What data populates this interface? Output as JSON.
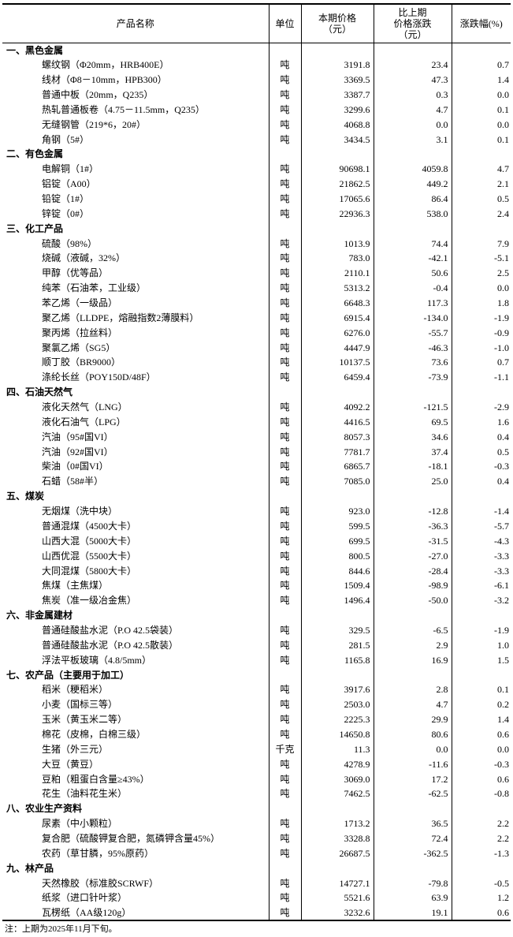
{
  "header": {
    "name": "产品名称",
    "unit": "单位",
    "price_l1": "本期价格",
    "price_l2": "（元）",
    "change_l1": "比上期",
    "change_l2": "价格涨跌",
    "change_l3": "（元）",
    "pct": "涨跌幅(%)"
  },
  "sections": [
    {
      "title": "一、黑色金属",
      "items": [
        {
          "name": "螺纹钢（Φ20mm，HRB400E）",
          "unit": "吨",
          "price": "3191.8",
          "change": "23.4",
          "pct": "0.7"
        },
        {
          "name": "线材（Φ8－10mm，HPB300）",
          "unit": "吨",
          "price": "3369.5",
          "change": "47.3",
          "pct": "1.4"
        },
        {
          "name": "普通中板（20mm，Q235）",
          "unit": "吨",
          "price": "3387.7",
          "change": "0.3",
          "pct": "0.0"
        },
        {
          "name": "热轧普通板卷（4.75－11.5mm，Q235）",
          "unit": "吨",
          "price": "3299.6",
          "change": "4.7",
          "pct": "0.1"
        },
        {
          "name": "无缝钢管（219*6，20#）",
          "unit": "吨",
          "price": "4068.8",
          "change": "0.0",
          "pct": "0.0"
        },
        {
          "name": "角钢（5#）",
          "unit": "吨",
          "price": "3434.5",
          "change": "3.1",
          "pct": "0.1"
        }
      ]
    },
    {
      "title": "二、有色金属",
      "items": [
        {
          "name": "电解铜（1#）",
          "unit": "吨",
          "price": "90698.1",
          "change": "4059.8",
          "pct": "4.7"
        },
        {
          "name": "铝锭（A00）",
          "unit": "吨",
          "price": "21862.5",
          "change": "449.2",
          "pct": "2.1"
        },
        {
          "name": "铅锭（1#）",
          "unit": "吨",
          "price": "17065.6",
          "change": "86.4",
          "pct": "0.5"
        },
        {
          "name": "锌锭（0#）",
          "unit": "吨",
          "price": "22936.3",
          "change": "538.0",
          "pct": "2.4"
        }
      ]
    },
    {
      "title": "三、化工产品",
      "items": [
        {
          "name": "硫酸（98%）",
          "unit": "吨",
          "price": "1013.9",
          "change": "74.4",
          "pct": "7.9"
        },
        {
          "name": "烧碱（液碱，32%）",
          "unit": "吨",
          "price": "783.0",
          "change": "-42.1",
          "pct": "-5.1"
        },
        {
          "name": "甲醇（优等品）",
          "unit": "吨",
          "price": "2110.1",
          "change": "50.6",
          "pct": "2.5"
        },
        {
          "name": "纯苯（石油苯，工业级）",
          "unit": "吨",
          "price": "5313.2",
          "change": "-0.4",
          "pct": "0.0"
        },
        {
          "name": "苯乙烯（一级品）",
          "unit": "吨",
          "price": "6648.3",
          "change": "117.3",
          "pct": "1.8"
        },
        {
          "name": "聚乙烯（LLDPE，熔融指数2薄膜料）",
          "unit": "吨",
          "price": "6915.4",
          "change": "-134.0",
          "pct": "-1.9"
        },
        {
          "name": "聚丙烯（拉丝料）",
          "unit": "吨",
          "price": "6276.0",
          "change": "-55.7",
          "pct": "-0.9"
        },
        {
          "name": "聚氯乙烯（SG5）",
          "unit": "吨",
          "price": "4447.9",
          "change": "-46.3",
          "pct": "-1.0"
        },
        {
          "name": "顺丁胶（BR9000）",
          "unit": "吨",
          "price": "10137.5",
          "change": "73.6",
          "pct": "0.7"
        },
        {
          "name": "涤纶长丝（POY150D/48F）",
          "unit": "吨",
          "price": "6459.4",
          "change": "-73.9",
          "pct": "-1.1"
        }
      ]
    },
    {
      "title": "四、石油天然气",
      "items": [
        {
          "name": "液化天然气（LNG）",
          "unit": "吨",
          "price": "4092.2",
          "change": "-121.5",
          "pct": "-2.9"
        },
        {
          "name": "液化石油气（LPG）",
          "unit": "吨",
          "price": "4416.5",
          "change": "69.5",
          "pct": "1.6"
        },
        {
          "name": "汽油（95#国VI）",
          "unit": "吨",
          "price": "8057.3",
          "change": "34.6",
          "pct": "0.4"
        },
        {
          "name": "汽油（92#国VI）",
          "unit": "吨",
          "price": "7781.7",
          "change": "37.4",
          "pct": "0.5"
        },
        {
          "name": "柴油（0#国VI）",
          "unit": "吨",
          "price": "6865.7",
          "change": "-18.1",
          "pct": "-0.3"
        },
        {
          "name": "石蜡（58#半）",
          "unit": "吨",
          "price": "7085.0",
          "change": "25.0",
          "pct": "0.4"
        }
      ]
    },
    {
      "title": "五、煤炭",
      "items": [
        {
          "name": "无烟煤（洗中块）",
          "unit": "吨",
          "price": "923.0",
          "change": "-12.8",
          "pct": "-1.4"
        },
        {
          "name": "普通混煤（4500大卡）",
          "unit": "吨",
          "price": "599.5",
          "change": "-36.3",
          "pct": "-5.7"
        },
        {
          "name": "山西大混（5000大卡）",
          "unit": "吨",
          "price": "699.5",
          "change": "-31.5",
          "pct": "-4.3"
        },
        {
          "name": "山西优混（5500大卡）",
          "unit": "吨",
          "price": "800.5",
          "change": "-27.0",
          "pct": "-3.3"
        },
        {
          "name": "大同混煤（5800大卡）",
          "unit": "吨",
          "price": "844.6",
          "change": "-28.4",
          "pct": "-3.3"
        },
        {
          "name": "焦煤（主焦煤）",
          "unit": "吨",
          "price": "1509.4",
          "change": "-98.9",
          "pct": "-6.1"
        },
        {
          "name": "焦炭（准一级冶金焦）",
          "unit": "吨",
          "price": "1496.4",
          "change": "-50.0",
          "pct": "-3.2"
        }
      ]
    },
    {
      "title": "六、非金属建材",
      "items": [
        {
          "name": "普通硅酸盐水泥（P.O 42.5袋装）",
          "unit": "吨",
          "price": "329.5",
          "change": "-6.5",
          "pct": "-1.9"
        },
        {
          "name": "普通硅酸盐水泥（P.O 42.5散装）",
          "unit": "吨",
          "price": "281.5",
          "change": "2.9",
          "pct": "1.0"
        },
        {
          "name": "浮法平板玻璃（4.8/5mm）",
          "unit": "吨",
          "price": "1165.8",
          "change": "16.9",
          "pct": "1.5"
        }
      ]
    },
    {
      "title": "七、农产品（主要用于加工）",
      "items": [
        {
          "name": "稻米（粳稻米）",
          "unit": "吨",
          "price": "3917.6",
          "change": "2.8",
          "pct": "0.1"
        },
        {
          "name": "小麦（国标三等）",
          "unit": "吨",
          "price": "2503.0",
          "change": "4.7",
          "pct": "0.2"
        },
        {
          "name": "玉米（黄玉米二等）",
          "unit": "吨",
          "price": "2225.3",
          "change": "29.9",
          "pct": "1.4"
        },
        {
          "name": "棉花（皮棉，白棉三级）",
          "unit": "吨",
          "price": "14650.8",
          "change": "80.6",
          "pct": "0.6"
        },
        {
          "name": "生猪（外三元）",
          "unit": "千克",
          "price": "11.3",
          "change": "0.0",
          "pct": "0.0"
        },
        {
          "name": "大豆（黄豆）",
          "unit": "吨",
          "price": "4278.9",
          "change": "-11.6",
          "pct": "-0.3"
        },
        {
          "name": "豆粕（粗蛋白含量≥43%）",
          "unit": "吨",
          "price": "3069.0",
          "change": "17.2",
          "pct": "0.6"
        },
        {
          "name": "花生（油料花生米）",
          "unit": "吨",
          "price": "7462.5",
          "change": "-62.5",
          "pct": "-0.8"
        }
      ]
    },
    {
      "title": "八、农业生产资料",
      "items": [
        {
          "name": "尿素（中小颗粒）",
          "unit": "吨",
          "price": "1713.2",
          "change": "36.5",
          "pct": "2.2"
        },
        {
          "name": "复合肥（硫酸钾复合肥，氮磷钾含量45%）",
          "unit": "吨",
          "price": "3328.8",
          "change": "72.4",
          "pct": "2.2"
        },
        {
          "name": "农药（草甘膦，95%原药）",
          "unit": "吨",
          "price": "26687.5",
          "change": "-362.5",
          "pct": "-1.3"
        }
      ]
    },
    {
      "title": "九、林产品",
      "items": [
        {
          "name": "天然橡胶（标准胶SCRWF）",
          "unit": "吨",
          "price": "14727.1",
          "change": "-79.8",
          "pct": "-0.5"
        },
        {
          "name": "纸浆（进口针叶浆）",
          "unit": "吨",
          "price": "5521.6",
          "change": "63.9",
          "pct": "1.2"
        },
        {
          "name": "瓦楞纸（AA级120g）",
          "unit": "吨",
          "price": "3232.6",
          "change": "19.1",
          "pct": "0.6"
        }
      ]
    }
  ],
  "note": "注：上期为2025年11月下旬。"
}
